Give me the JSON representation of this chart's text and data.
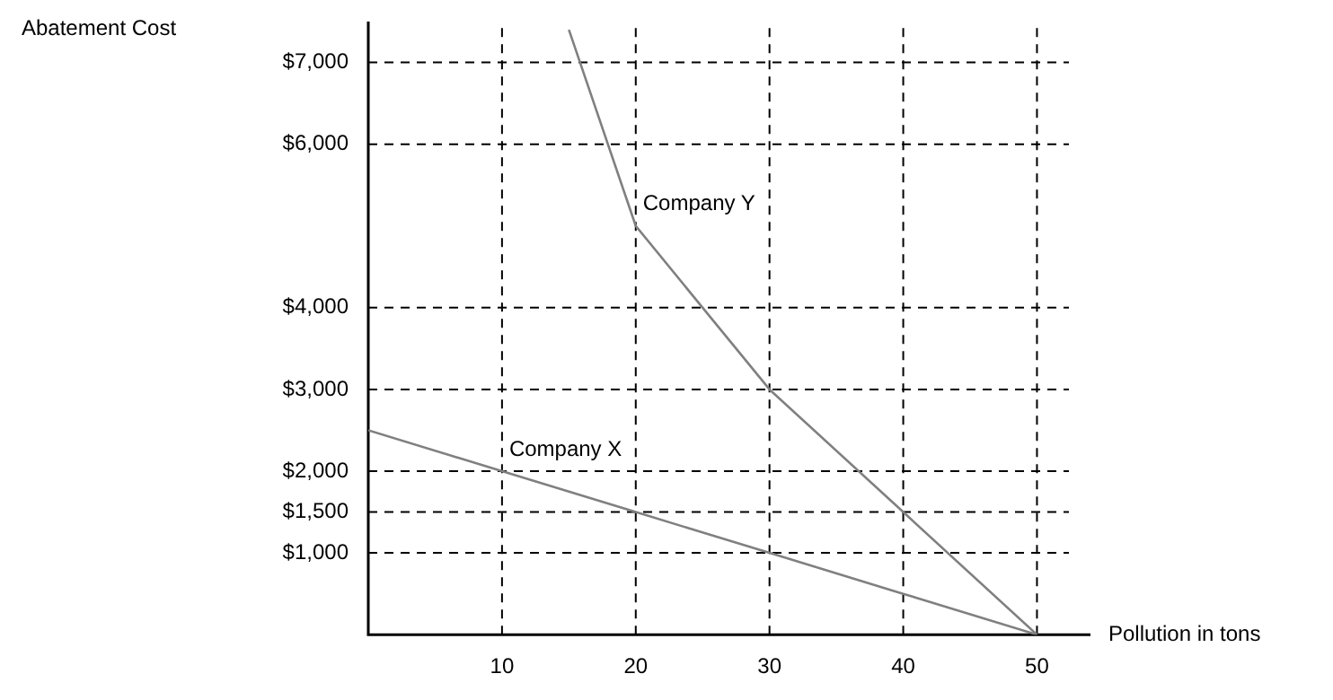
{
  "chart_data": {
    "type": "line",
    "xlabel": "Pollution in tons",
    "ylabel": "Abatement Cost",
    "series": [
      {
        "name": "Company X",
        "color": "#808080",
        "x": [
          0,
          10,
          20,
          30,
          40,
          50
        ],
        "values": [
          2500,
          2000,
          1500,
          1000,
          500,
          0
        ]
      },
      {
        "name": "Company Y",
        "color": "#808080",
        "x": [
          15,
          20,
          30,
          40,
          50
        ],
        "values": [
          7400,
          5000,
          3000,
          1500,
          0
        ]
      }
    ],
    "xlim": [
      0,
      54
    ],
    "xticks": [
      10,
      20,
      30,
      40,
      50
    ],
    "ylim": [
      0,
      7500
    ],
    "yticks": [
      {
        "value": 1000,
        "label": "$1,000"
      },
      {
        "value": 1500,
        "label": "$1,500"
      },
      {
        "value": 2000,
        "label": "$2,000"
      },
      {
        "value": 3000,
        "label": "$3,000"
      },
      {
        "value": 4000,
        "label": "$4,000"
      },
      {
        "value": 6000,
        "label": "$6,000"
      },
      {
        "value": 7000,
        "label": "$7,000"
      }
    ],
    "grid": true,
    "line_style": "solid",
    "marker": "none",
    "legend": false
  }
}
